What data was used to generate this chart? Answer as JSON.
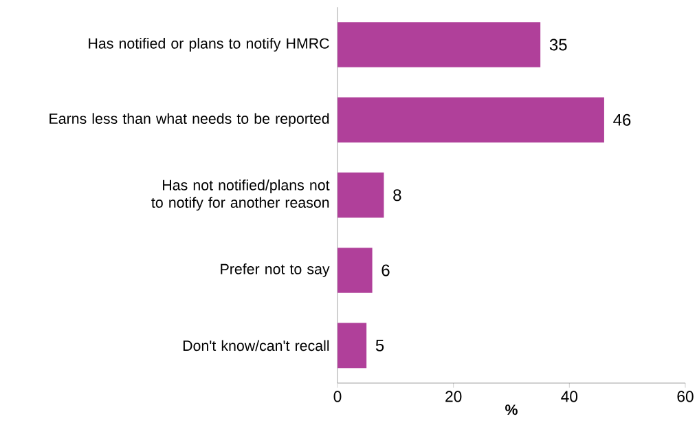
{
  "chart_data": {
    "type": "bar",
    "orientation": "horizontal",
    "xlabel": "%",
    "categories": [
      "Has notified or plans to notify HMRC",
      "Earns less than what needs to be reported",
      "Has not notified/plans not to notify for another reason",
      "Prefer not to say",
      "Don't know/can't recall"
    ],
    "values": [
      35,
      46,
      8,
      6,
      5
    ],
    "color": "#b0409a",
    "xlim": [
      0,
      60
    ],
    "xticks": [
      0,
      20,
      40,
      60
    ],
    "data_labels": true
  }
}
